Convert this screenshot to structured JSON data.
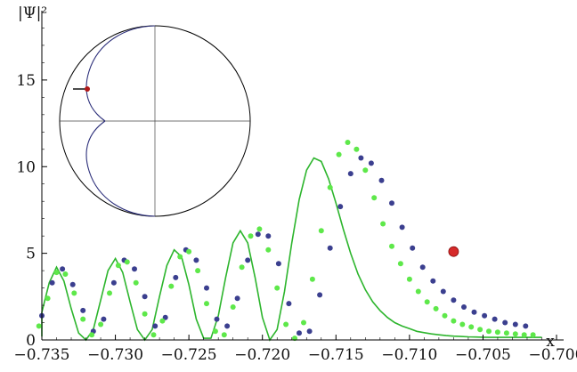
{
  "chart_data": {
    "type": "scatter",
    "title": "",
    "xlabel": "x",
    "ylabel": "|Ψ|²",
    "xlim": [
      -0.735,
      -0.7
    ],
    "ylim": [
      0,
      19
    ],
    "grid": false,
    "xticks": [
      -0.735,
      -0.73,
      -0.725,
      -0.72,
      -0.715,
      -0.71,
      -0.705,
      -0.7
    ],
    "xtick_labels": [
      "−0.735",
      "−0.730",
      "−0.725",
      "−0.720",
      "−0.715",
      "−0.710",
      "−0.705",
      "−0.700"
    ],
    "yticks": [
      0,
      5,
      10,
      15
    ],
    "ytick_labels": [
      "0",
      "5",
      "10",
      "15"
    ],
    "series": [
      {
        "kind": "line",
        "color": "#2db52d",
        "x": [
          -0.7355,
          -0.735,
          -0.7345,
          -0.734,
          -0.7335,
          -0.733,
          -0.7325,
          -0.732,
          -0.7315,
          -0.731,
          -0.7305,
          -0.73,
          -0.7295,
          -0.729,
          -0.7285,
          -0.728,
          -0.7275,
          -0.727,
          -0.7265,
          -0.726,
          -0.7255,
          -0.725,
          -0.7245,
          -0.724,
          -0.7235,
          -0.723,
          -0.7225,
          -0.722,
          -0.7215,
          -0.721,
          -0.7205,
          -0.72,
          -0.7195,
          -0.719,
          -0.7185,
          -0.718,
          -0.7175,
          -0.717,
          -0.7165,
          -0.716,
          -0.7155,
          -0.715,
          -0.7145,
          -0.714,
          -0.7135,
          -0.713,
          -0.7125,
          -0.712,
          -0.7115,
          -0.711,
          -0.7105,
          -0.71,
          -0.7095,
          -0.709,
          -0.7085,
          -0.708,
          -0.7075,
          -0.707,
          -0.7065,
          -0.706,
          -0.7055,
          -0.705,
          -0.7045,
          -0.704,
          -0.7035,
          -0.703,
          -0.7025,
          -0.702,
          -0.7015,
          -0.701
        ],
        "y": [
          0.2,
          1.6,
          3.3,
          4.2,
          3.4,
          1.8,
          0.4,
          0.0,
          0.6,
          2.3,
          4.0,
          4.7,
          3.9,
          2.2,
          0.6,
          0.0,
          0.6,
          2.5,
          4.3,
          5.2,
          4.8,
          3.2,
          1.2,
          0.1,
          0.1,
          1.4,
          3.6,
          5.6,
          6.3,
          5.6,
          3.6,
          1.3,
          0.0,
          0.6,
          2.8,
          5.6,
          8.1,
          9.8,
          10.5,
          10.3,
          9.3,
          7.9,
          6.4,
          5.0,
          3.8,
          2.9,
          2.2,
          1.7,
          1.3,
          1.0,
          0.8,
          0.65,
          0.5,
          0.42,
          0.35,
          0.3,
          0.25,
          0.22,
          0.2,
          0.18,
          0.17,
          0.16,
          0.15,
          0.15,
          0.15,
          0.15,
          0.15,
          0.15,
          0.15,
          0.15
        ]
      },
      {
        "kind": "points",
        "color": "#3b3f8f",
        "x": [
          -0.735,
          -0.7343,
          -0.7336,
          -0.7329,
          -0.7322,
          -0.7315,
          -0.7308,
          -0.7301,
          -0.7294,
          -0.7287,
          -0.728,
          -0.7273,
          -0.7266,
          -0.7259,
          -0.7252,
          -0.7245,
          -0.7238,
          -0.7231,
          -0.7224,
          -0.7217,
          -0.721,
          -0.7203,
          -0.7196,
          -0.7189,
          -0.7182,
          -0.7175,
          -0.7168,
          -0.7161,
          -0.7154,
          -0.7147,
          -0.714,
          -0.7133,
          -0.7126,
          -0.7119,
          -0.7112,
          -0.7105,
          -0.7098,
          -0.7091,
          -0.7084,
          -0.7077,
          -0.707,
          -0.7063,
          -0.7056,
          -0.7049,
          -0.7042,
          -0.7035,
          -0.7028,
          -0.7021
        ],
        "y": [
          1.4,
          3.3,
          4.1,
          3.2,
          1.7,
          0.5,
          1.2,
          3.3,
          4.6,
          4.1,
          2.5,
          0.8,
          1.3,
          3.6,
          5.2,
          4.6,
          3.0,
          1.2,
          0.8,
          2.4,
          4.6,
          6.1,
          6.0,
          4.4,
          2.1,
          0.4,
          0.5,
          2.6,
          5.3,
          7.7,
          9.6,
          10.5,
          10.2,
          9.2,
          7.9,
          6.5,
          5.3,
          4.2,
          3.4,
          2.8,
          2.3,
          1.9,
          1.6,
          1.4,
          1.2,
          1.0,
          0.9,
          0.8
        ]
      },
      {
        "kind": "points",
        "color": "#5ee84a",
        "x": [
          -0.7352,
          -0.7346,
          -0.734,
          -0.7334,
          -0.7328,
          -0.7322,
          -0.7316,
          -0.731,
          -0.7304,
          -0.7298,
          -0.7292,
          -0.7286,
          -0.728,
          -0.7274,
          -0.7268,
          -0.7262,
          -0.7256,
          -0.725,
          -0.7244,
          -0.7238,
          -0.7232,
          -0.7226,
          -0.722,
          -0.7214,
          -0.7208,
          -0.7202,
          -0.7196,
          -0.719,
          -0.7184,
          -0.7178,
          -0.7172,
          -0.7166,
          -0.716,
          -0.7154,
          -0.7148,
          -0.7142,
          -0.7136,
          -0.713,
          -0.7124,
          -0.7118,
          -0.7112,
          -0.7106,
          -0.71,
          -0.7094,
          -0.7088,
          -0.7082,
          -0.7076,
          -0.707,
          -0.7064,
          -0.7058,
          -0.7052,
          -0.7046,
          -0.704,
          -0.7034,
          -0.7028,
          -0.7022,
          -0.7016
        ],
        "y": [
          0.8,
          2.4,
          3.9,
          3.8,
          2.7,
          1.2,
          0.3,
          0.9,
          2.7,
          4.3,
          4.5,
          3.3,
          1.5,
          0.3,
          1.1,
          3.1,
          4.8,
          5.1,
          4.0,
          2.1,
          0.5,
          0.3,
          1.9,
          4.2,
          6.0,
          6.4,
          5.2,
          3.0,
          0.9,
          0.1,
          1.0,
          3.5,
          6.3,
          8.8,
          10.7,
          11.4,
          11.0,
          9.8,
          8.2,
          6.7,
          5.4,
          4.4,
          3.5,
          2.8,
          2.2,
          1.8,
          1.4,
          1.1,
          0.9,
          0.75,
          0.6,
          0.5,
          0.45,
          0.4,
          0.35,
          0.3,
          0.3
        ]
      },
      {
        "kind": "marker",
        "color": "#d62a2a",
        "x": [
          -0.707
        ],
        "y": [
          5.1
        ]
      }
    ],
    "inset": {
      "type": "diagram",
      "description_shape": "unit circle with crosshair and cardioid-like curve",
      "curve_color": "#2c2f7a",
      "marker_color": "#b01818",
      "marker_position_angle_deg": 148
    }
  }
}
